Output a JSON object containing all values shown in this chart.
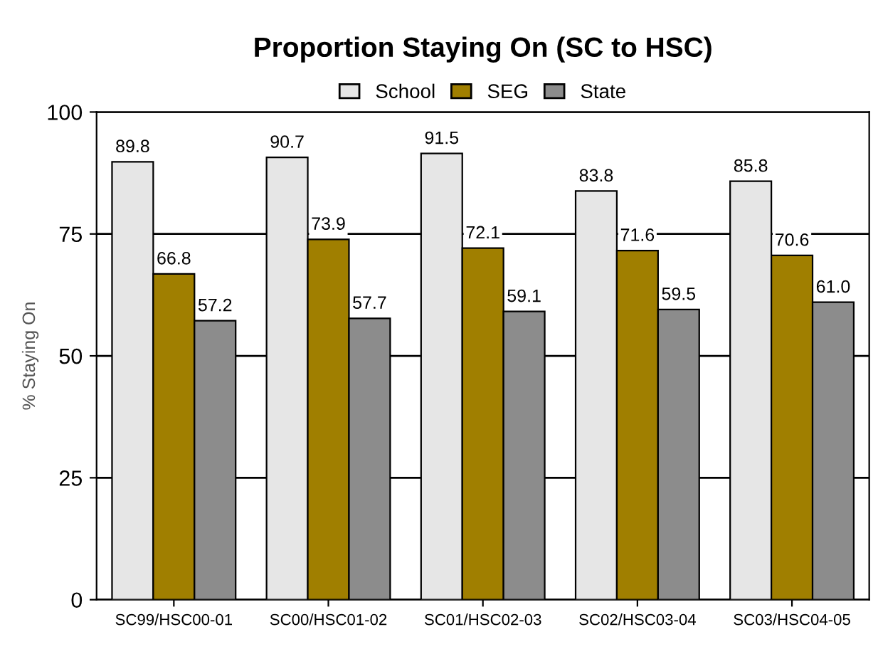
{
  "chart_data": {
    "type": "bar",
    "title": "Proportion Staying On (SC to HSC)",
    "ylabel": "% Staying On",
    "categories": [
      "SC99/HSC00-01",
      "SC00/HSC01-02",
      "SC01/HSC02-03",
      "SC02/HSC03-04",
      "SC03/HSC04-05"
    ],
    "series": [
      {
        "name": "School",
        "color": "#e6e6e6",
        "values": [
          89.8,
          90.7,
          91.5,
          83.8,
          85.8
        ],
        "value_labels": [
          "89.8",
          "90.7",
          "91.5",
          "83.8",
          "85.8"
        ]
      },
      {
        "name": "SEG",
        "color": "#a07f00",
        "values": [
          66.8,
          73.9,
          72.1,
          71.6,
          70.6
        ],
        "value_labels": [
          "66.8",
          "73.9",
          "72.1",
          "71.6",
          "70.6"
        ]
      },
      {
        "name": "State",
        "color": "#8c8c8c",
        "values": [
          57.2,
          57.7,
          59.1,
          59.5,
          61.0
        ],
        "value_labels": [
          "57.2",
          "57.7",
          "59.1",
          "59.5",
          "61.0"
        ]
      }
    ],
    "ylim": [
      0,
      100
    ],
    "yticks": [
      0,
      25,
      50,
      75,
      100
    ],
    "grid": "y",
    "legend": "top"
  }
}
